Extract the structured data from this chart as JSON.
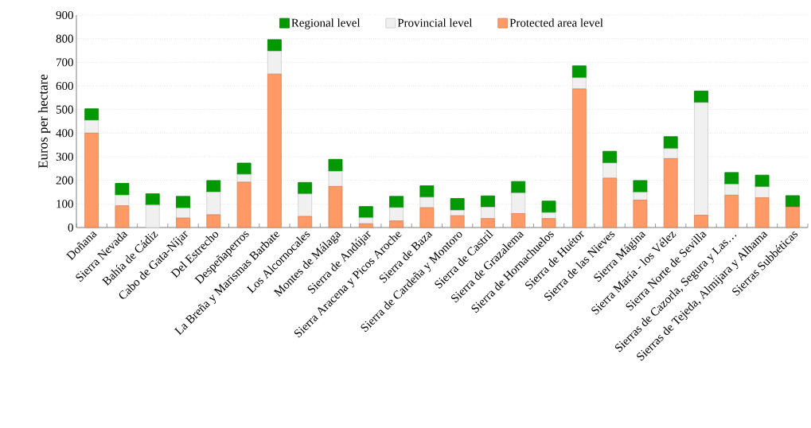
{
  "chart_data": {
    "type": "bar",
    "ylabel": "Euros per hectare",
    "stacked": true,
    "categories": [
      "Doñana",
      "Sierra Nevada",
      "Bahía de Cádiz",
      "Cabo de Gata-Níjar",
      "Del Estrecho",
      "Despeñaperros",
      "La Breña y Marismas Barbate",
      "Los Alcornocales",
      "Montes de Málaga",
      "Sierra de Andújar",
      "Sierra Aracena y Picos Aroche",
      "Sierra de Baza",
      "Sierra de Cardeña y Montoro",
      "Sierra de Castril",
      "Sierra de Grazalema",
      "Sierra de Hornachuelos",
      "Sierra de Huétor",
      "Sierra de las Nieves",
      "Sierra Mágina",
      "Sierra María - los Vélez",
      "Sierra Norte de Sevilla",
      "Sierras de Cazorla, Segura y Las…",
      "Sierras de Tejeda, Almijara y Alhama",
      "Sierras Subbéticas"
    ],
    "series": [
      {
        "name": "Protected area level",
        "color": "#ff9966",
        "values": [
          400,
          92,
          0,
          40,
          54,
          192,
          650,
          47,
          174,
          16,
          28,
          84,
          50,
          38,
          59,
          38,
          587,
          209,
          116,
          292,
          52,
          137,
          126,
          87
        ]
      },
      {
        "name": "Provincial level",
        "color": "#f0f0f0",
        "values": [
          54,
          45,
          95,
          42,
          96,
          33,
          97,
          95,
          64,
          25,
          56,
          44,
          23,
          48,
          87,
          25,
          47,
          64,
          33,
          42,
          477,
          46,
          46,
          0
        ]
      },
      {
        "name": "Regional level",
        "color": "#009900",
        "values": [
          49,
          50,
          48,
          50,
          49,
          48,
          49,
          49,
          51,
          48,
          48,
          49,
          50,
          48,
          49,
          49,
          51,
          50,
          50,
          51,
          49,
          50,
          50,
          48
        ]
      }
    ],
    "ylim": [
      0,
      900
    ],
    "yticks": [
      0,
      100,
      200,
      300,
      400,
      500,
      600,
      700,
      800,
      900
    ],
    "grid": "y",
    "legend": "top"
  }
}
